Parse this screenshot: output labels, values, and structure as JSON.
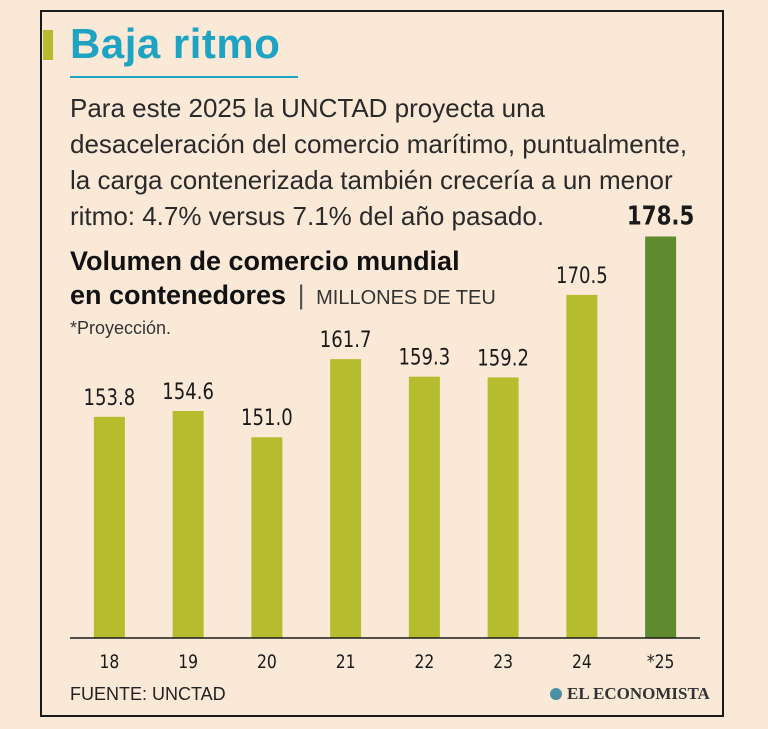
{
  "headline": "Baja ritmo",
  "intro": "Para este 2025 la UNCTAD proyecta una desaceleración del comercio marítimo, puntualmente, la carga contenerizada también crecería a un menor ritmo: 4.7% versus 7.1% del año pasado.",
  "chart_title_line1": "Volumen de comercio mundial",
  "chart_title_line2": "en contenedores",
  "chart_title_separator": "|",
  "chart_unit": "MILLONES DE TEU",
  "note": "*Proyección.",
  "source": "FUENTE: UNCTAD",
  "brand": "EL ECONOMISTA",
  "colors": {
    "bar": "#b5bd2f",
    "bar_highlight": "#5f8a2e",
    "headline": "#1fa3c2",
    "background": "#fbe9d8"
  },
  "chart_data": {
    "type": "bar",
    "categories": [
      "18",
      "19",
      "20",
      "21",
      "22",
      "23",
      "24",
      "*25"
    ],
    "values": [
      153.8,
      154.6,
      151.0,
      161.7,
      159.3,
      159.2,
      170.5,
      178.5
    ],
    "labels": [
      "153.8",
      "154.6",
      "151.0",
      "161.7",
      "159.3",
      "159.2",
      "170.5",
      "178.5"
    ],
    "highlight_index": 7,
    "title": "Volumen de comercio mundial en contenedores",
    "ylabel": "MILLONES DE TEU",
    "grid": false
  }
}
